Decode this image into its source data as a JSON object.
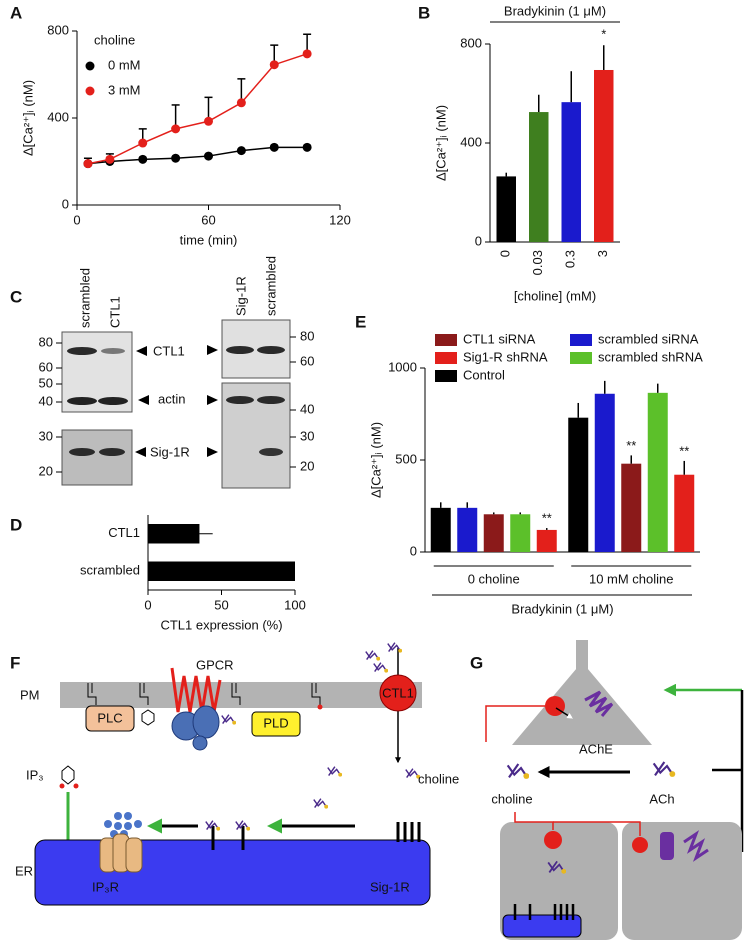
{
  "panel_labels": [
    "A",
    "B",
    "C",
    "D",
    "E",
    "F",
    "G"
  ],
  "chart_data": [
    {
      "type": "line",
      "ylabel": "Δ[Ca²⁺]ᵢ (nM)",
      "xlabel": "time (min)",
      "legend_title": "choline",
      "legend": "upper left",
      "x": [
        5,
        15,
        30,
        45,
        60,
        75,
        90,
        105
      ],
      "series": [
        {
          "name": "0 mM",
          "color": "#000000",
          "values": [
            190,
            200,
            210,
            215,
            225,
            250,
            265,
            265
          ]
        },
        {
          "name": "3 mM",
          "color": "#e3201b",
          "values": [
            190,
            210,
            285,
            350,
            385,
            470,
            645,
            695
          ],
          "errors": [
            25,
            25,
            65,
            110,
            110,
            110,
            90,
            90
          ]
        }
      ],
      "xlim": [
        0,
        120
      ],
      "xticks": [
        0,
        60,
        120
      ],
      "ylim": [
        0,
        800
      ],
      "yticks": [
        0,
        400,
        800
      ]
    },
    {
      "type": "bar",
      "title": "Bradykinin (1 μM)",
      "ylabel": "Δ[Ca²⁺]ᵢ (nM)",
      "xlabel": "[choline] (mM)",
      "categories": [
        "0",
        "0.03",
        "0.3",
        "3"
      ],
      "values": [
        265,
        525,
        565,
        695
      ],
      "errors": [
        15,
        70,
        125,
        100
      ],
      "colors": [
        "#000000",
        "#3f7f1f",
        "#1a1acd",
        "#e3201b"
      ],
      "significance": [
        null,
        null,
        null,
        "*"
      ],
      "ylim": [
        0,
        800
      ],
      "yticks": [
        0,
        400,
        800
      ]
    },
    {
      "type": "barh",
      "xlabel": "CTL1 expression (%)",
      "categories": [
        "CTL1",
        "scrambled"
      ],
      "values": [
        35,
        100
      ],
      "errors": [
        9,
        null
      ],
      "color": "#000000",
      "xlim": [
        0,
        100
      ],
      "xticks": [
        0,
        50,
        100
      ]
    },
    {
      "type": "grouped_bar",
      "ylabel": "Δ[Ca²⁺]ᵢ (nM)",
      "group_title": "Bradykinin (1 μM)",
      "categories": [
        "0 choline",
        "10 mM choline"
      ],
      "series": [
        {
          "name": "Control",
          "color": "#000000",
          "values": [
            240,
            730
          ],
          "errors": [
            30,
            80
          ]
        },
        {
          "name": "scrambled siRNA",
          "color": "#1a1acd",
          "values": [
            240,
            860
          ],
          "errors": [
            30,
            70
          ]
        },
        {
          "name": "CTL1 siRNA",
          "color": "#8b1a1a",
          "values": [
            205,
            480
          ],
          "errors": [
            10,
            45
          ],
          "significance": [
            null,
            "**"
          ]
        },
        {
          "name": "scrambled shRNA",
          "color": "#5cc02a",
          "values": [
            205,
            865
          ],
          "errors": [
            10,
            50
          ]
        },
        {
          "name": "Sig1-R shRNA",
          "color": "#e3201b",
          "values": [
            120,
            420
          ],
          "errors": [
            10,
            75
          ],
          "significance": [
            "**",
            "**"
          ]
        }
      ],
      "ylim": [
        0,
        1000
      ],
      "yticks": [
        0,
        500,
        1000
      ]
    }
  ],
  "blots": {
    "left": {
      "lanes": [
        "scrambled",
        "CTL1"
      ],
      "markers": [
        80,
        60,
        50,
        40
      ],
      "bands": [
        "CTL1",
        "actin"
      ]
    },
    "left_bottom": {
      "markers": [
        30,
        20
      ],
      "bands": [
        "Sig-1R"
      ]
    },
    "right": {
      "lanes": [
        "Sig-1R",
        "scrambled"
      ],
      "markers": [
        80,
        60,
        40,
        30,
        20
      ]
    }
  },
  "diagram_f": {
    "membrane": "PM",
    "receptor": "GPCR",
    "transporter": "CTL1",
    "enzymes": [
      "PLC",
      "PLD"
    ],
    "second_messenger": "IP₃",
    "metabolite": "choline",
    "organelle": "ER",
    "channel": "IP₃R",
    "chaperone": "Sig-1R"
  },
  "diagram_g": {
    "enzyme": "AChE",
    "product": "choline",
    "substrate": "ACh"
  }
}
